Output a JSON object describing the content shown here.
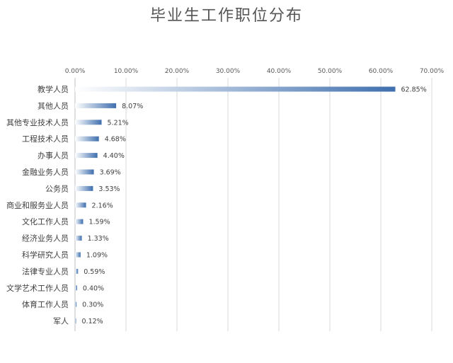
{
  "chart_data": {
    "type": "bar",
    "orientation": "horizontal",
    "title": "毕业生工作职位分布",
    "xlabel": "",
    "ylabel": "",
    "xlim": [
      0,
      70
    ],
    "x_ticks": [
      "0.00%",
      "10.00%",
      "20.00%",
      "30.00%",
      "40.00%",
      "50.00%",
      "60.00%",
      "70.00%"
    ],
    "x_axis_position": "top",
    "grid": true,
    "legend": "none",
    "bar_color": "#3f6fae",
    "categories": [
      "教学人员",
      "其他人员",
      "其他专业技术人员",
      "工程技术人员",
      "办事人员",
      "金融业务人员",
      "公务员",
      "商业和服务业人员",
      "文化工作人员",
      "经济业务人员",
      "科学研究人员",
      "法律专业人员",
      "文学艺术工作人员",
      "体育工作人员",
      "军人"
    ],
    "values": [
      62.85,
      8.07,
      5.21,
      4.68,
      4.4,
      3.69,
      3.53,
      2.16,
      1.59,
      1.33,
      1.09,
      0.59,
      0.4,
      0.3,
      0.12
    ],
    "data_labels": [
      "62.85%",
      "8.07%",
      "5.21%",
      "4.68%",
      "4.40%",
      "3.69%",
      "3.53%",
      "2.16%",
      "1.59%",
      "1.33%",
      "1.09%",
      "0.59%",
      "0.40%",
      "0.30%",
      "0.12%"
    ]
  }
}
